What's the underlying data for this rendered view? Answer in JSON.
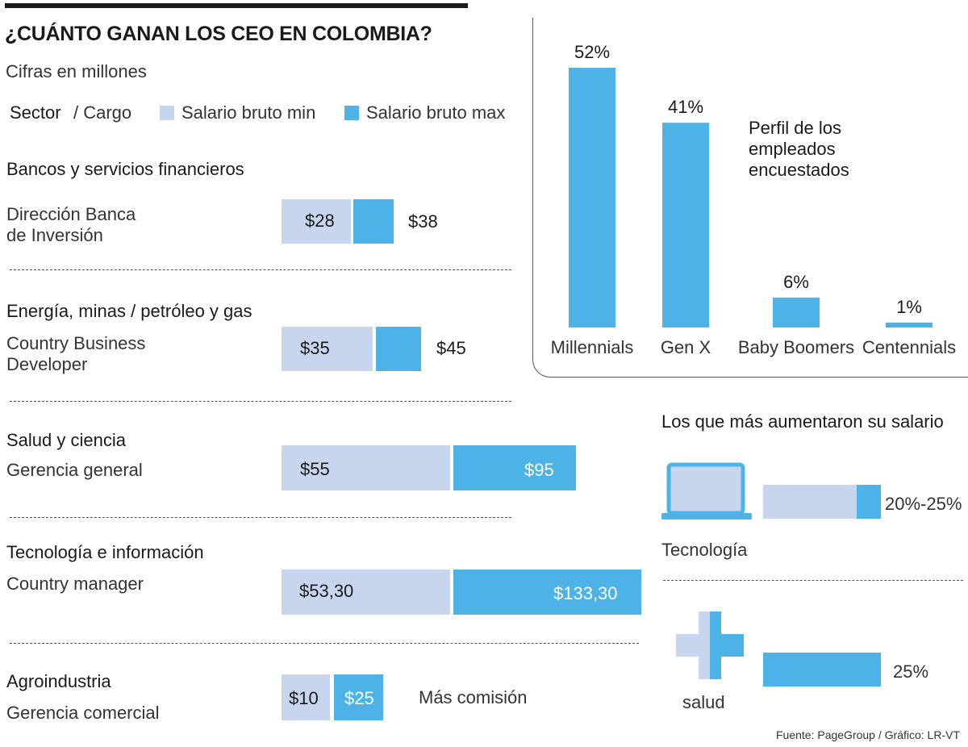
{
  "title": "¿CUÁNTO GANAN LOS CEO EN COLOMBIA?",
  "subtitle": "Cifras en millones",
  "legend": {
    "sector": "Sector",
    "cargo": "/ Cargo",
    "min_label": "Salario bruto min",
    "max_label": "Salario bruto max",
    "min_color": "#c8d5ee",
    "max_color": "#4db3e6"
  },
  "salaries": [
    {
      "sector": "Bancos y servicios financieros",
      "role_line1": "Dirección Banca",
      "role_line2": "de Inversión",
      "min_label": "$28",
      "max_label": "$38",
      "min": 28,
      "max": 38
    },
    {
      "sector": "Energía, minas / petróleo y gas",
      "role_line1": "Country Business",
      "role_line2": "Developer",
      "min_label": "$35",
      "max_label": "$45",
      "min": 35,
      "max": 45
    },
    {
      "sector": "Salud y ciencia",
      "role_line1": "Gerencia general",
      "role_line2": "",
      "min_label": "$55",
      "max_label": "$95",
      "min": 55,
      "max": 95
    },
    {
      "sector": "Tecnología e información",
      "role_line1": "Country manager",
      "role_line2": "",
      "min_label": "$53,30",
      "max_label": "$133,30",
      "min": 53.3,
      "max": 133.3
    },
    {
      "sector": "Agroindustria",
      "role_line1": "Gerencia comercial",
      "role_line2": "",
      "min_label": "$10",
      "max_label": "$25",
      "min": 10,
      "max": 25,
      "note": "Más comisión"
    }
  ],
  "profile": {
    "title_line1": "Perfil de los",
    "title_line2": "empleados",
    "title_line3": "encuestados"
  },
  "raises": {
    "title": "Los que más aumentaron su salario",
    "items": [
      {
        "name": "Tecnología",
        "label": "20%-25%",
        "low": 20,
        "high": 25
      },
      {
        "name": "salud",
        "label": "25%",
        "value": 25
      }
    ]
  },
  "source": "Fuente: PageGroup / Gráfico: LR-VT",
  "chart_data": [
    {
      "type": "bar",
      "title": "Perfil de los empleados encuestados",
      "categories": [
        "Millennials",
        "Gen X",
        "Baby Boomers",
        "Centennials"
      ],
      "values": [
        52,
        41,
        6,
        1
      ],
      "value_labels": [
        "52%",
        "41%",
        "6%",
        "1%"
      ],
      "ylim": [
        0,
        52
      ],
      "color": "#4db3e6"
    }
  ]
}
